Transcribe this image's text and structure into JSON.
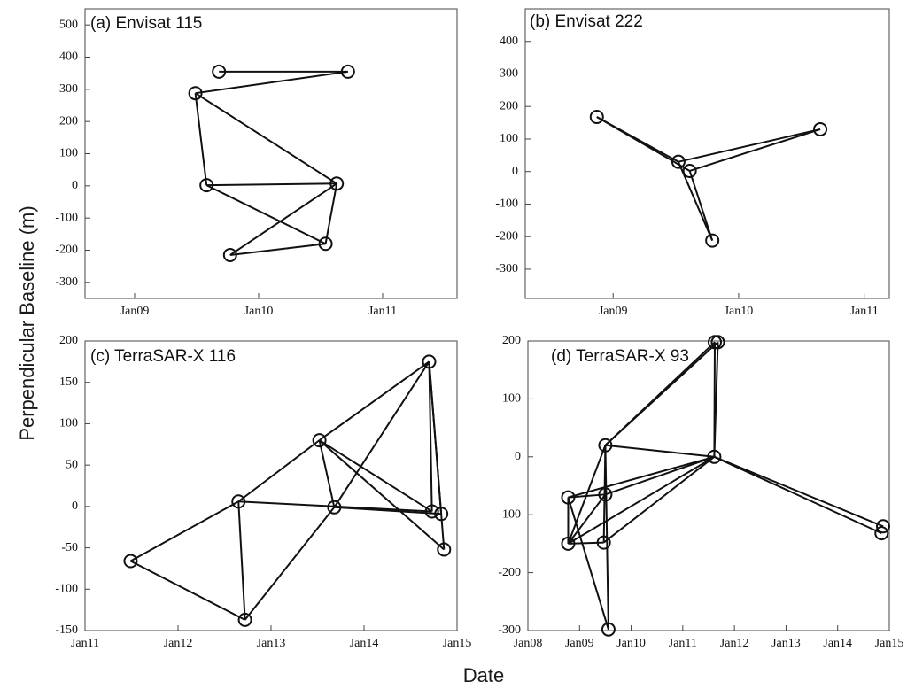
{
  "figure": {
    "ylabel": "Perpendicular Baseline (m)",
    "xlabel": "Date"
  },
  "chart_data": [
    {
      "type": "network",
      "title": "(a) Envisat 115",
      "ylim": [
        -350,
        550
      ],
      "yticks": [
        -300,
        -200,
        -100,
        0,
        100,
        200,
        300,
        400,
        500
      ],
      "xlim": [
        2008.6,
        2011.6
      ],
      "xticks": [
        {
          "value": 2009.0,
          "label": "Jan09"
        },
        {
          "value": 2010.0,
          "label": "Jan10"
        },
        {
          "value": 2011.0,
          "label": "Jan11"
        }
      ],
      "nodes": [
        {
          "id": "A",
          "date": 2009.68,
          "baseline": 355
        },
        {
          "id": "B",
          "date": 2010.72,
          "baseline": 355
        },
        {
          "id": "C",
          "date": 2009.49,
          "baseline": 288
        },
        {
          "id": "D",
          "date": 2009.58,
          "baseline": 2
        },
        {
          "id": "E",
          "date": 2010.63,
          "baseline": 7
        },
        {
          "id": "F",
          "date": 2010.54,
          "baseline": -180
        },
        {
          "id": "G",
          "date": 2009.77,
          "baseline": -215
        }
      ],
      "edges": [
        [
          "A",
          "B"
        ],
        [
          "B",
          "C"
        ],
        [
          "C",
          "E"
        ],
        [
          "C",
          "D"
        ],
        [
          "D",
          "E"
        ],
        [
          "D",
          "F"
        ],
        [
          "E",
          "F"
        ],
        [
          "E",
          "G"
        ],
        [
          "F",
          "G"
        ]
      ]
    },
    {
      "type": "network",
      "title": "(b) Envisat 222",
      "ylim": [
        -390,
        500
      ],
      "yticks": [
        -300,
        -200,
        -100,
        0,
        100,
        200,
        300,
        400
      ],
      "xlim": [
        2008.3,
        2011.2
      ],
      "xticks": [
        {
          "value": 2009.0,
          "label": "Jan09"
        },
        {
          "value": 2010.0,
          "label": "Jan10"
        },
        {
          "value": 2011.0,
          "label": "Jan11"
        }
      ],
      "nodes": [
        {
          "id": "P",
          "date": 2008.87,
          "baseline": 168
        },
        {
          "id": "Q",
          "date": 2009.52,
          "baseline": 30
        },
        {
          "id": "R",
          "date": 2009.61,
          "baseline": 2
        },
        {
          "id": "S",
          "date": 2009.79,
          "baseline": -212
        },
        {
          "id": "T",
          "date": 2010.65,
          "baseline": 130
        }
      ],
      "edges": [
        [
          "P",
          "Q"
        ],
        [
          "P",
          "R"
        ],
        [
          "Q",
          "T"
        ],
        [
          "R",
          "T"
        ],
        [
          "Q",
          "S"
        ],
        [
          "R",
          "S"
        ]
      ]
    },
    {
      "type": "network",
      "title": "(c) TerraSAR-X 116",
      "ylim": [
        -150,
        200
      ],
      "yticks": [
        -150,
        -100,
        -50,
        0,
        50,
        100,
        150,
        200
      ],
      "xlim": [
        2011.0,
        2015.0
      ],
      "xticks": [
        {
          "value": 2011.0,
          "label": "Jan11"
        },
        {
          "value": 2012.0,
          "label": "Jan12"
        },
        {
          "value": 2013.0,
          "label": "Jan13"
        },
        {
          "value": 2014.0,
          "label": "Jan14"
        },
        {
          "value": 2015.0,
          "label": "Jan15"
        }
      ],
      "nodes": [
        {
          "id": "a",
          "date": 2011.49,
          "baseline": -66
        },
        {
          "id": "b",
          "date": 2012.65,
          "baseline": 6
        },
        {
          "id": "c",
          "date": 2012.72,
          "baseline": -137
        },
        {
          "id": "d",
          "date": 2013.52,
          "baseline": 80
        },
        {
          "id": "e",
          "date": 2013.68,
          "baseline": -1
        },
        {
          "id": "f",
          "date": 2014.7,
          "baseline": 175
        },
        {
          "id": "g",
          "date": 2014.73,
          "baseline": -6
        },
        {
          "id": "h",
          "date": 2014.83,
          "baseline": -9
        },
        {
          "id": "i",
          "date": 2014.86,
          "baseline": -52
        }
      ],
      "edges": [
        [
          "a",
          "b"
        ],
        [
          "a",
          "c"
        ],
        [
          "b",
          "c"
        ],
        [
          "b",
          "d"
        ],
        [
          "b",
          "g"
        ],
        [
          "c",
          "e"
        ],
        [
          "d",
          "e"
        ],
        [
          "d",
          "f"
        ],
        [
          "d",
          "g"
        ],
        [
          "d",
          "i"
        ],
        [
          "e",
          "f"
        ],
        [
          "e",
          "h"
        ],
        [
          "f",
          "g"
        ],
        [
          "f",
          "h"
        ],
        [
          "f",
          "i"
        ]
      ]
    },
    {
      "type": "network",
      "title": "(d) TerraSAR-X 93",
      "ylim": [
        -300,
        200
      ],
      "yticks": [
        -300,
        -200,
        -100,
        0,
        100,
        200
      ],
      "xlim": [
        2008.0,
        2015.0
      ],
      "xticks": [
        {
          "value": 2008.0,
          "label": "Jan08"
        },
        {
          "value": 2009.0,
          "label": "Jan09"
        },
        {
          "value": 2010.0,
          "label": "Jan10"
        },
        {
          "value": 2011.0,
          "label": "Jan11"
        },
        {
          "value": 2012.0,
          "label": "Jan12"
        },
        {
          "value": 2013.0,
          "label": "Jan13"
        },
        {
          "value": 2014.0,
          "label": "Jan14"
        },
        {
          "value": 2015.0,
          "label": "Jan15"
        }
      ],
      "nodes": [
        {
          "id": "m1",
          "date": 2008.78,
          "baseline": -70
        },
        {
          "id": "m2",
          "date": 2008.78,
          "baseline": -150
        },
        {
          "id": "m3",
          "date": 2009.5,
          "baseline": 20
        },
        {
          "id": "m4",
          "date": 2009.5,
          "baseline": -65
        },
        {
          "id": "m5",
          "date": 2009.47,
          "baseline": -148
        },
        {
          "id": "m6",
          "date": 2009.56,
          "baseline": -298
        },
        {
          "id": "m7",
          "date": 2011.62,
          "baseline": 198
        },
        {
          "id": "m8",
          "date": 2011.68,
          "baseline": 198
        },
        {
          "id": "m9",
          "date": 2011.61,
          "baseline": 0
        },
        {
          "id": "m10",
          "date": 2014.88,
          "baseline": -120
        },
        {
          "id": "m11",
          "date": 2014.85,
          "baseline": -132
        }
      ],
      "edges": [
        [
          "m1",
          "m2"
        ],
        [
          "m1",
          "m4"
        ],
        [
          "m1",
          "m9"
        ],
        [
          "m1",
          "m6"
        ],
        [
          "m2",
          "m3"
        ],
        [
          "m2",
          "m4"
        ],
        [
          "m2",
          "m5"
        ],
        [
          "m2",
          "m9"
        ],
        [
          "m3",
          "m4"
        ],
        [
          "m3",
          "m6"
        ],
        [
          "m3",
          "m9"
        ],
        [
          "m3",
          "m7"
        ],
        [
          "m3",
          "m8"
        ],
        [
          "m4",
          "m9"
        ],
        [
          "m5",
          "m9"
        ],
        [
          "m5",
          "m3"
        ],
        [
          "m7",
          "m9"
        ],
        [
          "m8",
          "m9"
        ],
        [
          "m9",
          "m10"
        ],
        [
          "m9",
          "m11"
        ]
      ]
    }
  ]
}
